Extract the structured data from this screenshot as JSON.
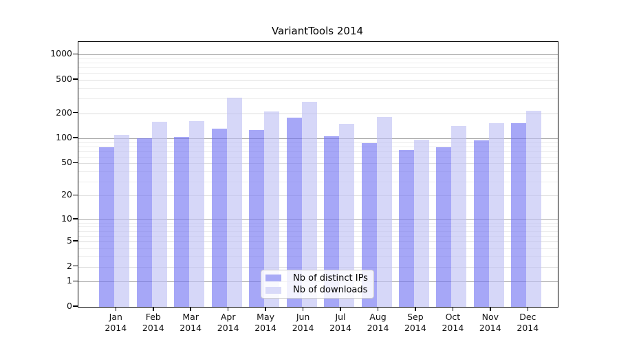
{
  "figure": {
    "title": "VariantTools 2014"
  },
  "chart_data": {
    "type": "bar",
    "title": "VariantTools 2014",
    "yscale": "log1p",
    "ylabel": "",
    "xlabel": "",
    "grid": true,
    "ylim": [
      0,
      1400
    ],
    "yticks": [
      0,
      1,
      2,
      5,
      10,
      20,
      50,
      100,
      200,
      500,
      1000
    ],
    "minor_gridlines": [
      3,
      4,
      6,
      7,
      8,
      9,
      30,
      40,
      60,
      70,
      80,
      90,
      300,
      400,
      600,
      700,
      800,
      900
    ],
    "decade_gridlines": [
      1,
      10,
      100,
      1000
    ],
    "categories": [
      {
        "month": "Jan",
        "year": "2014"
      },
      {
        "month": "Feb",
        "year": "2014"
      },
      {
        "month": "Mar",
        "year": "2014"
      },
      {
        "month": "Apr",
        "year": "2014"
      },
      {
        "month": "May",
        "year": "2014"
      },
      {
        "month": "Jun",
        "year": "2014"
      },
      {
        "month": "Jul",
        "year": "2014"
      },
      {
        "month": "Aug",
        "year": "2014"
      },
      {
        "month": "Sep",
        "year": "2014"
      },
      {
        "month": "Oct",
        "year": "2014"
      },
      {
        "month": "Nov",
        "year": "2014"
      },
      {
        "month": "Dec",
        "year": "2014"
      }
    ],
    "series": [
      {
        "name": "Nb of distinct IPs",
        "bar_color": "rgba(111,113,242,0.62)",
        "legend_color": "#a9abf6",
        "values": [
          78,
          100,
          105,
          130,
          125,
          177,
          107,
          88,
          73,
          78,
          94,
          151
        ]
      },
      {
        "name": "Nb of downloads",
        "bar_color": "rgba(189,190,244,0.62)",
        "legend_color": "#d9daf9",
        "values": [
          110,
          158,
          160,
          305,
          210,
          272,
          148,
          180,
          97,
          142,
          151,
          215
        ]
      }
    ],
    "legend_position": "lower center"
  }
}
